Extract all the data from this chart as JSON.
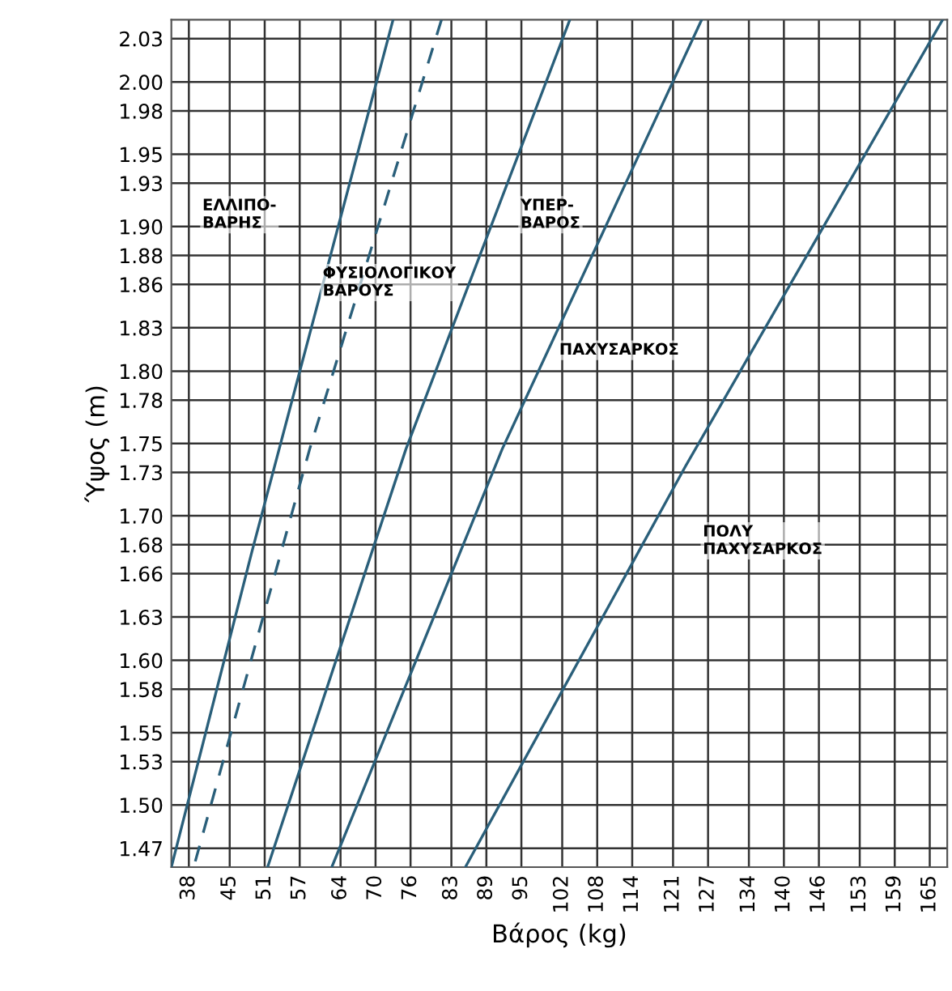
{
  "chart_data": {
    "type": "line",
    "xlabel": "Βάρος (kg)",
    "ylabel": "Ύψος (m)",
    "xlim": [
      35,
      168
    ],
    "ylim": [
      1.457,
      2.043
    ],
    "xticks": [
      38,
      45,
      51,
      57,
      64,
      70,
      76,
      83,
      89,
      95,
      102,
      108,
      114,
      121,
      127,
      134,
      140,
      146,
      153,
      159,
      165
    ],
    "yticks": [
      1.47,
      {
        "value": 1.5,
        "label": "1.50"
      },
      1.53,
      1.55,
      1.58,
      {
        "value": 1.6,
        "label": "1.60"
      },
      1.63,
      1.66,
      1.68,
      {
        "value": 1.7,
        "label": "1.70"
      },
      1.73,
      1.75,
      1.78,
      {
        "value": 1.8,
        "label": "1.80"
      },
      1.83,
      1.86,
      1.88,
      {
        "value": 1.9,
        "label": "1.90"
      },
      1.93,
      1.95,
      1.98,
      {
        "value": 2.0,
        "label": "2.00"
      },
      2.03
    ],
    "grid": true,
    "series": [
      {
        "color": "#2a5f7a",
        "x": [
          35,
          48.8,
          73.0
        ],
        "values": [
          1.457,
          1.675,
          2.043
        ]
      },
      {
        "color": "#2a5f7a",
        "line_style": "dashed",
        "x": [
          39.1,
          58.7,
          81.3
        ],
        "values": [
          1.461,
          1.746,
          2.043
        ]
      },
      {
        "color": "#2a5f7a",
        "x": [
          51.5,
          75.2,
          103.3
        ],
        "values": [
          1.457,
          1.746,
          2.043
        ]
      },
      {
        "color": "#2a5f7a",
        "x": [
          62.5,
          91.7,
          125.9
        ],
        "values": [
          1.457,
          1.746,
          2.043
        ]
      },
      {
        "color": "#2a5f7a",
        "x": [
          85.4,
          123.1,
          167.2
        ],
        "values": [
          1.457,
          1.734,
          2.043
        ]
      }
    ],
    "annotations": [
      "ΕΛΛΙΠΟ-\nΒΑΡΗΣ",
      "ΦΥΣΙΟΛΟΓΙΚΟΥ\nΒΑΡΟΥΣ",
      "ΥΠΕΡ-\nΒΑΡΟΣ",
      "ΠΑΧΥΣΑΡΚΟΣ",
      "ΠΟΛΥ\nΠΑΧΥΣΑΡΚΟΣ"
    ]
  }
}
